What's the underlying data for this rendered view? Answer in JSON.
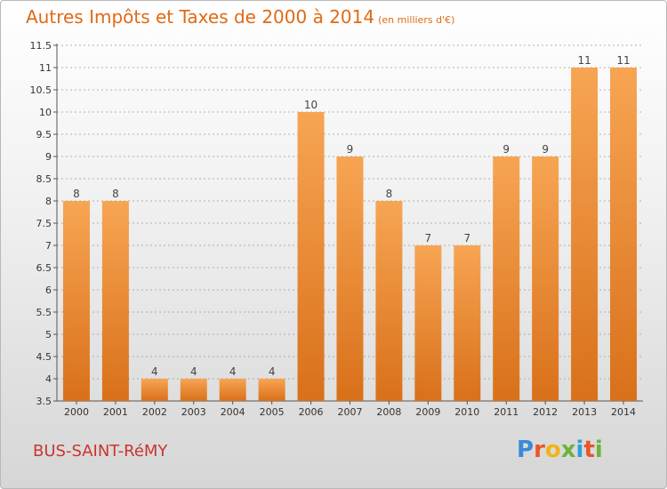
{
  "title": "Autres Impôts et Taxes de 2000 à 2014",
  "title_unit": "(en milliers d'€)",
  "commune": "BUS-SAINT-RéMY",
  "logo_text": "Proxiti",
  "logo_colors": [
    "#3a8ad6",
    "#e8562a",
    "#f0b515",
    "#6cb33e",
    "#2e9fd8",
    "#e8562a",
    "#6cb33e"
  ],
  "colors": {
    "bar_light": "#f7a553",
    "bar_dark": "#d9701a",
    "title": "#e06a15",
    "commune": "#c8362e",
    "grid": "#999999"
  },
  "chart_data": {
    "type": "bar",
    "categories": [
      "2000",
      "2001",
      "2002",
      "2003",
      "2004",
      "2005",
      "2006",
      "2007",
      "2008",
      "2009",
      "2010",
      "2011",
      "2012",
      "2013",
      "2014"
    ],
    "values": [
      8,
      8,
      4,
      4,
      4,
      4,
      10,
      9,
      8,
      7,
      7,
      9,
      9,
      11,
      11
    ],
    "data_labels": [
      "8",
      "8",
      "4",
      "4",
      "4",
      "4",
      "10",
      "9",
      "8",
      "7",
      "7",
      "9",
      "9",
      "11",
      "11"
    ],
    "ylim": [
      3.5,
      11.5
    ],
    "yticks": [
      3.5,
      4,
      4.5,
      5,
      5.5,
      6,
      6.5,
      7,
      7.5,
      8,
      8.5,
      9,
      9.5,
      10,
      10.5,
      11,
      11.5
    ],
    "ytick_labels": [
      "3.5",
      "4",
      "4.5",
      "5",
      "5.5",
      "6",
      "6.5",
      "7",
      "7.5",
      "8",
      "8.5",
      "9",
      "9.5",
      "10",
      "10.5",
      "11",
      "11.5"
    ],
    "grid": true,
    "legend": "none"
  }
}
